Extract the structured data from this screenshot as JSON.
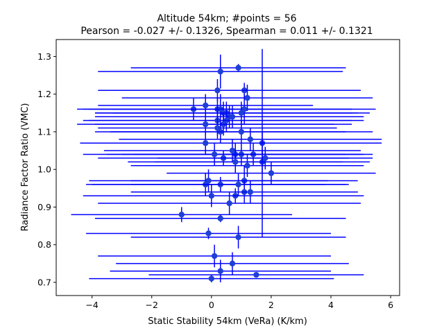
{
  "chart_data": {
    "type": "scatter",
    "title_line1": "Altitude 54km;  #points = 56",
    "title_line2": "Pearson = -0.027 +/-  0.1326, Spearman =  0.011 +/-  0.1321",
    "xlabel": "Static Stability 54km (VeRa) (K/km)",
    "ylabel": "Radiance Factor Ratio (VMC)",
    "xlim": [
      -5.2,
      6.3
    ],
    "ylim": [
      0.665,
      1.345
    ],
    "xticks": [
      -4,
      -2,
      0,
      2,
      4,
      6
    ],
    "xtick_labels": [
      "−4",
      "−2",
      "0",
      "2",
      "4",
      "6"
    ],
    "yticks": [
      0.7,
      0.8,
      0.9,
      1.0,
      1.1,
      1.2,
      1.3
    ],
    "ytick_labels": [
      "0.7",
      "0.8",
      "0.9",
      "1.0",
      "1.1",
      "1.2",
      "1.3"
    ],
    "color": "#0000ff",
    "marker_color": "#1f3fd8",
    "points": [
      {
        "x": 0.9,
        "y": 1.27,
        "xerr": 3.6,
        "yerr": 0.01
      },
      {
        "x": 0.3,
        "y": 1.26,
        "xerr": 4.1,
        "yerr": 0.045
      },
      {
        "x": 1.1,
        "y": 1.21,
        "xerr": 3.9,
        "yerr": 0.02
      },
      {
        "x": 0.2,
        "y": 1.21,
        "xerr": 4.0,
        "yerr": 0.03
      },
      {
        "x": 1.2,
        "y": 1.19,
        "xerr": 4.2,
        "yerr": 0.035
      },
      {
        "x": -0.2,
        "y": 1.17,
        "xerr": 3.6,
        "yerr": 0.03
      },
      {
        "x": -0.6,
        "y": 1.16,
        "xerr": 3.9,
        "yerr": 0.03
      },
      {
        "x": 0.2,
        "y": 1.16,
        "xerr": 4.5,
        "yerr": 0.03
      },
      {
        "x": 0.3,
        "y": 1.16,
        "xerr": 4.4,
        "yerr": 0.04
      },
      {
        "x": 0.4,
        "y": 1.15,
        "xerr": 4.3,
        "yerr": 0.03
      },
      {
        "x": 0.5,
        "y": 1.15,
        "xerr": 4.4,
        "yerr": 0.03
      },
      {
        "x": 1.1,
        "y": 1.16,
        "xerr": 4.4,
        "yerr": 0.04
      },
      {
        "x": 1.0,
        "y": 1.15,
        "xerr": 4.3,
        "yerr": 0.03
      },
      {
        "x": 0.6,
        "y": 1.14,
        "xerr": 4.5,
        "yerr": 0.03
      },
      {
        "x": 0.7,
        "y": 1.14,
        "xerr": 4.3,
        "yerr": 0.03
      },
      {
        "x": 0.5,
        "y": 1.13,
        "xerr": 4.6,
        "yerr": 0.03
      },
      {
        "x": 0.2,
        "y": 1.13,
        "xerr": 4.5,
        "yerr": 0.04
      },
      {
        "x": 0.4,
        "y": 1.12,
        "xerr": 4.3,
        "yerr": 0.03
      },
      {
        "x": -0.2,
        "y": 1.12,
        "xerr": 4.3,
        "yerr": 0.03
      },
      {
        "x": 0.2,
        "y": 1.11,
        "xerr": 4.0,
        "yerr": 0.03
      },
      {
        "x": 0.3,
        "y": 1.1,
        "xerr": 4.2,
        "yerr": 0.03
      },
      {
        "x": 1.0,
        "y": 1.1,
        "xerr": 4.4,
        "yerr": 0.03
      },
      {
        "x": 1.3,
        "y": 1.08,
        "xerr": 4.4,
        "yerr": 0.03
      },
      {
        "x": 1.7,
        "y": 1.07,
        "xerr": 4.0,
        "yerr": 0.03
      },
      {
        "x": -0.2,
        "y": 1.07,
        "xerr": 4.2,
        "yerr": 0.03
      },
      {
        "x": 0.7,
        "y": 1.05,
        "xerr": 4.3,
        "yerr": 0.03
      },
      {
        "x": 0.8,
        "y": 1.04,
        "xerr": 4.3,
        "yerr": 0.03
      },
      {
        "x": 1.4,
        "y": 1.04,
        "xerr": 4.0,
        "yerr": 0.03
      },
      {
        "x": 1.0,
        "y": 1.04,
        "xerr": 4.0,
        "yerr": 0.03
      },
      {
        "x": 0.1,
        "y": 1.04,
        "xerr": 4.4,
        "yerr": 0.03
      },
      {
        "x": 0.4,
        "y": 1.03,
        "xerr": 4.2,
        "yerr": 0.02
      },
      {
        "x": 1.8,
        "y": 1.03,
        "xerr": 3.6,
        "yerr": 0.03
      },
      {
        "x": 1.7,
        "y": 1.02,
        "xerr": 3.6,
        "yerr": 0.03
      },
      {
        "x": 0.8,
        "y": 1.02,
        "xerr": 3.6,
        "yerr": 0.03
      },
      {
        "x": 1.2,
        "y": 1.01,
        "xerr": 3.9,
        "yerr": 0.03
      },
      {
        "x": 2.0,
        "y": 0.99,
        "xerr": 3.5,
        "yerr": 0.03
      },
      {
        "x": 1.1,
        "y": 0.97,
        "xerr": 3.8,
        "yerr": 0.04
      },
      {
        "x": -0.1,
        "y": 0.97,
        "xerr": 4.0,
        "yerr": 0.03
      },
      {
        "x": -0.2,
        "y": 0.96,
        "xerr": 4.0,
        "yerr": 0.03
      },
      {
        "x": 0.3,
        "y": 0.96,
        "xerr": 4.3,
        "yerr": 0.02
      },
      {
        "x": 0.9,
        "y": 0.96,
        "xerr": 3.6,
        "yerr": 0.03
      },
      {
        "x": 1.1,
        "y": 0.94,
        "xerr": 3.8,
        "yerr": 0.03
      },
      {
        "x": 1.3,
        "y": 0.94,
        "xerr": 3.6,
        "yerr": 0.03
      },
      {
        "x": 0.8,
        "y": 0.93,
        "xerr": 4.3,
        "yerr": 0.02
      },
      {
        "x": 0.0,
        "y": 0.93,
        "xerr": 4.3,
        "yerr": 0.03
      },
      {
        "x": 0.6,
        "y": 0.91,
        "xerr": 4.4,
        "yerr": 0.03
      },
      {
        "x": -1.0,
        "y": 0.88,
        "xerr": 3.7,
        "yerr": 0.02
      },
      {
        "x": 0.3,
        "y": 0.87,
        "xerr": 4.2,
        "yerr": 0.01
      },
      {
        "x": -0.1,
        "y": 0.83,
        "xerr": 4.1,
        "yerr": 0.015
      },
      {
        "x": 0.9,
        "y": 0.82,
        "xerr": 3.6,
        "yerr": 0.03
      },
      {
        "x": 0.1,
        "y": 0.77,
        "xerr": 3.9,
        "yerr": 0.03
      },
      {
        "x": 0.7,
        "y": 0.75,
        "xerr": 3.9,
        "yerr": 0.03
      },
      {
        "x": 0.3,
        "y": 0.73,
        "xerr": 3.7,
        "yerr": 0.03
      },
      {
        "x": 1.5,
        "y": 0.72,
        "xerr": 3.6,
        "yerr": 0.005
      },
      {
        "x": 0.0,
        "y": 0.71,
        "xerr": 4.1,
        "yerr": 0.01
      },
      {
        "x": 1.7,
        "y": 1.07,
        "xerr": 0.0,
        "yerr": 0.25
      }
    ]
  }
}
